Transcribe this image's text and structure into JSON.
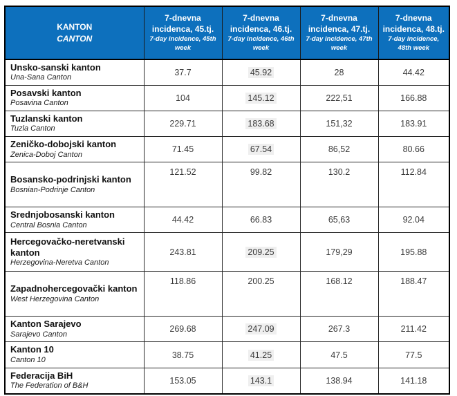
{
  "colors": {
    "header_bg": "#0D70BD",
    "header_text": "#FFFFFF",
    "field_shade": "#EFEFEF",
    "border": "#262626"
  },
  "table": {
    "header": {
      "canton": {
        "title": "KANTON",
        "subtitle": "CANTON"
      },
      "week_cols": [
        {
          "title": "7-dnevna incidenca, 45.tj.",
          "subtitle": "7-day incidence, 45th week"
        },
        {
          "title": "7-dnevna incidenca, 46.tj.",
          "subtitle": "7-day incidence, 46th week"
        },
        {
          "title": "7-dnevna incidenca, 47.tj.",
          "subtitle": "7-day incidence, 47th week"
        },
        {
          "title": "7-dnevna incidenca, 48.tj.",
          "subtitle": "7-day incidence, 48th week"
        }
      ]
    },
    "rows": [
      {
        "name": "Unsko-sanski kanton",
        "name_en": "Una-Sana Canton",
        "values": [
          "37.7",
          "45.92",
          "28",
          "44.42"
        ],
        "shaded46": true
      },
      {
        "name": "Posavski kanton",
        "name_en": "Posavina Canton",
        "values": [
          "104",
          "145.12",
          "222,51",
          "166.88"
        ],
        "shaded46": true
      },
      {
        "name": "Tuzlanski kanton",
        "name_en": "Tuzla Canton",
        "values": [
          "229.71",
          "183.68",
          "151,32",
          "183.91"
        ],
        "shaded46": true
      },
      {
        "name": "Zeničko-dobojski kanton",
        "name_en": "Zenica-Doboj Canton",
        "values": [
          "71.45",
          "67.54",
          "86,52",
          "80.66"
        ],
        "shaded46": true
      },
      {
        "name": "Bosansko-podrinjski kanton",
        "name_en": "Bosnian-Podrinje Canton",
        "values": [
          "121.52",
          "99.82",
          "130.2",
          "112.84"
        ],
        "shaded46": false
      },
      {
        "name": "Srednjobosanski kanton",
        "name_en": "Central Bosnia Canton",
        "values": [
          "44.42",
          "66.83",
          "65,63",
          "92.04"
        ],
        "shaded46": false
      },
      {
        "name": "Hercegovačko-neretvanski kanton",
        "name_en": "Herzegovina-Neretva Canton",
        "values": [
          "243.81",
          "209.25",
          "179,29",
          "195.88"
        ],
        "shaded46": true
      },
      {
        "name": "Zapadnohercegovački kanton",
        "name_en": "West Herzegovina Canton",
        "values": [
          "118.86",
          "200.25",
          "168.12",
          "188.47"
        ],
        "shaded46": false
      },
      {
        "name": "Kanton Sarajevo",
        "name_en": "Sarajevo Canton",
        "values": [
          "269.68",
          "247.09",
          "267.3",
          "211.42"
        ],
        "shaded46": true
      },
      {
        "name": "Kanton 10",
        "name_en": "Canton 10",
        "values": [
          "38.75",
          "41.25",
          "47.5",
          "77.5"
        ],
        "shaded46": true
      },
      {
        "name": "Federacija BiH",
        "name_en": "The Federation of B&H",
        "values": [
          "153.05",
          "143.1",
          "138.94",
          "141.18"
        ],
        "shaded46": true
      }
    ]
  }
}
